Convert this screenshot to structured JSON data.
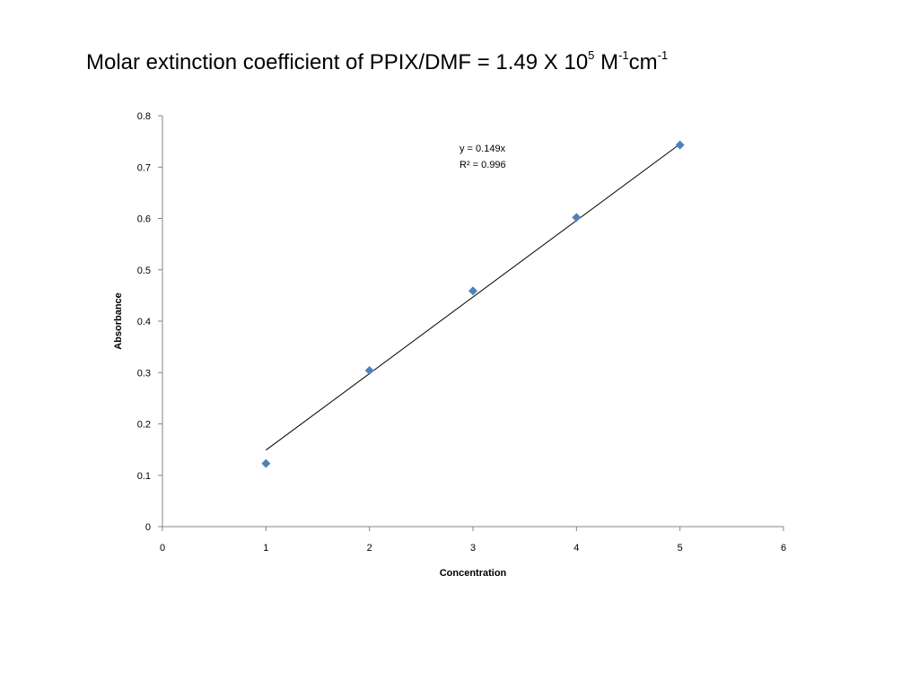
{
  "slide": {
    "title": {
      "text_before_exp": "Molar extinction coefficient of PPIX/DMF = 1.49 X 10",
      "exp_1": "5",
      "unit_m": " M",
      "exp_2": "-1",
      "unit_cm": "cm",
      "exp_3": "-1"
    }
  },
  "chart_data": {
    "type": "scatter",
    "xlabel": "Concentration",
    "ylabel": "Absorbance",
    "xlim": [
      0,
      6
    ],
    "ylim": [
      0,
      0.8
    ],
    "x_ticks": [
      "0",
      "1",
      "2",
      "3",
      "4",
      "5",
      "6"
    ],
    "y_ticks": [
      "0",
      "0.1",
      "0.2",
      "0.3",
      "0.4",
      "0.5",
      "0.6",
      "0.7",
      "0.8"
    ],
    "grid": false,
    "legend": "none",
    "marker": "diamond",
    "marker_color": "#4F81BD",
    "trendline_color": "#000000",
    "series": [
      {
        "x": [
          1,
          2,
          3,
          4,
          5
        ],
        "y": [
          0.123,
          0.304,
          0.459,
          0.602,
          0.743
        ]
      }
    ],
    "trendline": {
      "slope": 0.149,
      "x_range": [
        1,
        5
      ],
      "equation": "y = 0.149x",
      "r_squared": "R² = 0.996"
    }
  }
}
